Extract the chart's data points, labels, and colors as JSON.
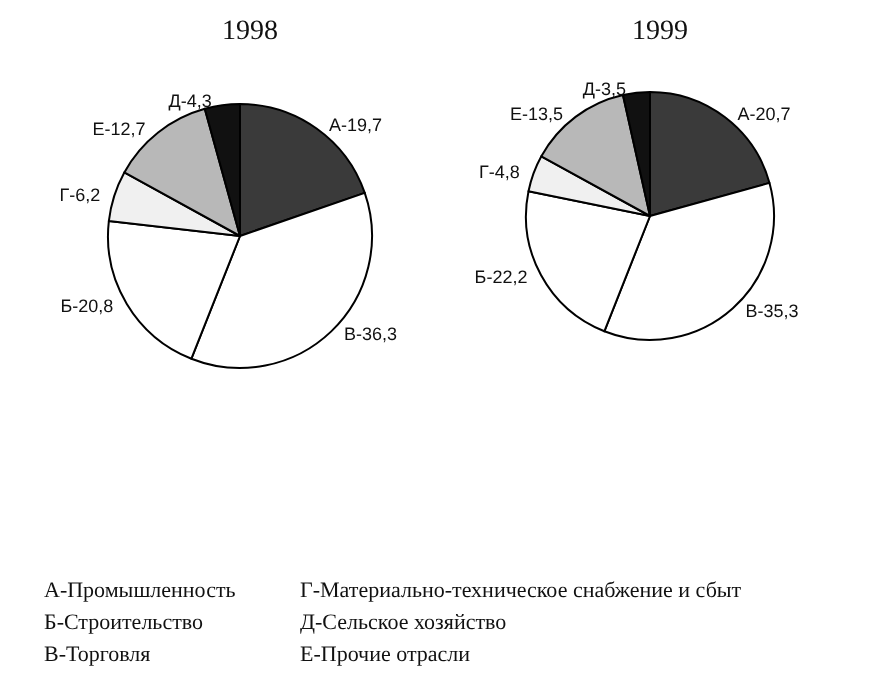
{
  "chart_data": [
    {
      "type": "pie",
      "title": "1998",
      "categories": [
        "А-19,7",
        "В-36,3",
        "Б-20,8",
        "Г-6,2",
        "Е-12,7",
        "Д-4,3"
      ],
      "values": [
        19.7,
        36.3,
        20.8,
        6.2,
        12.7,
        4.3
      ],
      "colors": [
        "#3a3a3a",
        "#ffffff",
        "#ffffff",
        "#f0f0f0",
        "#b8b8b8",
        "#111111"
      ]
    },
    {
      "type": "pie",
      "title": "1999",
      "categories": [
        "А-20,7",
        "В-35,3",
        "Б-22,2",
        "Г-4,8",
        "Е-13,5",
        "Д-3,5"
      ],
      "values": [
        20.7,
        35.3,
        22.2,
        4.8,
        13.5,
        3.5
      ],
      "colors": [
        "#3a3a3a",
        "#ffffff",
        "#ffffff",
        "#f0f0f0",
        "#b8b8b8",
        "#111111"
      ]
    },
    {
      "type": "other",
      "annotations": [
        "А-Промышленность",
        "Г-Материально-техническое снабжение и сбыт",
        "Б-Строительство",
        "Д-Сельское хозяйство",
        "В-Торговля",
        "Е-Прочие отрасли"
      ]
    }
  ]
}
